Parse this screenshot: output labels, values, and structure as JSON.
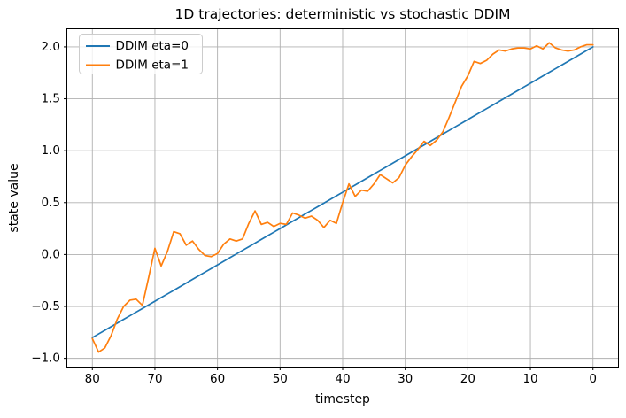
{
  "chart_data": {
    "type": "line",
    "title": "1D trajectories: deterministic vs stochastic DDIM",
    "xlabel": "timestep",
    "ylabel": "state value",
    "x_axis_inverted": true,
    "xlim": [
      84,
      -4
    ],
    "ylim": [
      -1.08,
      2.17
    ],
    "grid": true,
    "legend_position": "upper left",
    "xticks": [
      80,
      70,
      60,
      50,
      40,
      30,
      20,
      10,
      0
    ],
    "xtick_labels": [
      "80",
      "70",
      "60",
      "50",
      "40",
      "30",
      "20",
      "10",
      "0"
    ],
    "yticks": [
      2.0,
      1.5,
      1.0,
      0.5,
      0.0,
      -0.5,
      -1.0
    ],
    "ytick_labels": [
      "2.0",
      "1.5",
      "1.0",
      "0.5",
      "0.0",
      "−0.5",
      "−1.0"
    ],
    "x": [
      80,
      79,
      78,
      77,
      76,
      75,
      74,
      73,
      72,
      71,
      70,
      69,
      68,
      67,
      66,
      65,
      64,
      63,
      62,
      61,
      60,
      59,
      58,
      57,
      56,
      55,
      54,
      53,
      52,
      51,
      50,
      49,
      48,
      47,
      46,
      45,
      44,
      43,
      42,
      41,
      40,
      39,
      38,
      37,
      36,
      35,
      34,
      33,
      32,
      31,
      30,
      29,
      28,
      27,
      26,
      25,
      24,
      23,
      22,
      21,
      20,
      19,
      18,
      17,
      16,
      15,
      14,
      13,
      12,
      11,
      10,
      9,
      8,
      7,
      6,
      5,
      4,
      3,
      2,
      1,
      0
    ],
    "series": [
      {
        "name": "DDIM eta=0",
        "color": "#1f77b4",
        "values": [
          -0.8,
          -0.765,
          -0.73,
          -0.695,
          -0.66,
          -0.625,
          -0.59,
          -0.555,
          -0.52,
          -0.485,
          -0.45,
          -0.415,
          -0.38,
          -0.345,
          -0.31,
          -0.275,
          -0.24,
          -0.205,
          -0.17,
          -0.135,
          -0.1,
          -0.065,
          -0.03,
          0.005,
          0.04,
          0.075,
          0.11,
          0.145,
          0.18,
          0.215,
          0.25,
          0.285,
          0.32,
          0.355,
          0.39,
          0.425,
          0.46,
          0.495,
          0.53,
          0.565,
          0.6,
          0.635,
          0.67,
          0.705,
          0.74,
          0.775,
          0.81,
          0.845,
          0.88,
          0.915,
          0.95,
          0.985,
          1.02,
          1.055,
          1.09,
          1.125,
          1.16,
          1.195,
          1.23,
          1.265,
          1.3,
          1.335,
          1.37,
          1.405,
          1.44,
          1.475,
          1.51,
          1.545,
          1.58,
          1.615,
          1.65,
          1.685,
          1.72,
          1.755,
          1.79,
          1.825,
          1.86,
          1.895,
          1.93,
          1.965,
          2.0
        ]
      },
      {
        "name": "DDIM eta=1",
        "color": "#ff7f0e",
        "values": [
          -0.81,
          -0.94,
          -0.9,
          -0.78,
          -0.62,
          -0.5,
          -0.44,
          -0.43,
          -0.49,
          -0.22,
          0.06,
          -0.11,
          0.03,
          0.22,
          0.2,
          0.09,
          0.13,
          0.05,
          -0.01,
          -0.02,
          0.01,
          0.1,
          0.15,
          0.13,
          0.15,
          0.3,
          0.42,
          0.29,
          0.31,
          0.27,
          0.3,
          0.29,
          0.4,
          0.38,
          0.35,
          0.37,
          0.33,
          0.26,
          0.33,
          0.3,
          0.5,
          0.68,
          0.56,
          0.62,
          0.61,
          0.68,
          0.77,
          0.73,
          0.69,
          0.74,
          0.86,
          0.94,
          1.01,
          1.09,
          1.05,
          1.1,
          1.18,
          1.32,
          1.47,
          1.62,
          1.72,
          1.86,
          1.84,
          1.87,
          1.93,
          1.97,
          1.96,
          1.98,
          1.99,
          1.99,
          1.98,
          2.01,
          1.98,
          2.04,
          1.99,
          1.97,
          1.96,
          1.97,
          2.0,
          2.02,
          2.02
        ]
      }
    ]
  },
  "colors": {
    "background": "#ffffff",
    "grid": "#b0b0b0",
    "spine": "#000000",
    "tick": "#000000",
    "legend_border": "#cccccc",
    "legend_background": "#ffffff"
  }
}
